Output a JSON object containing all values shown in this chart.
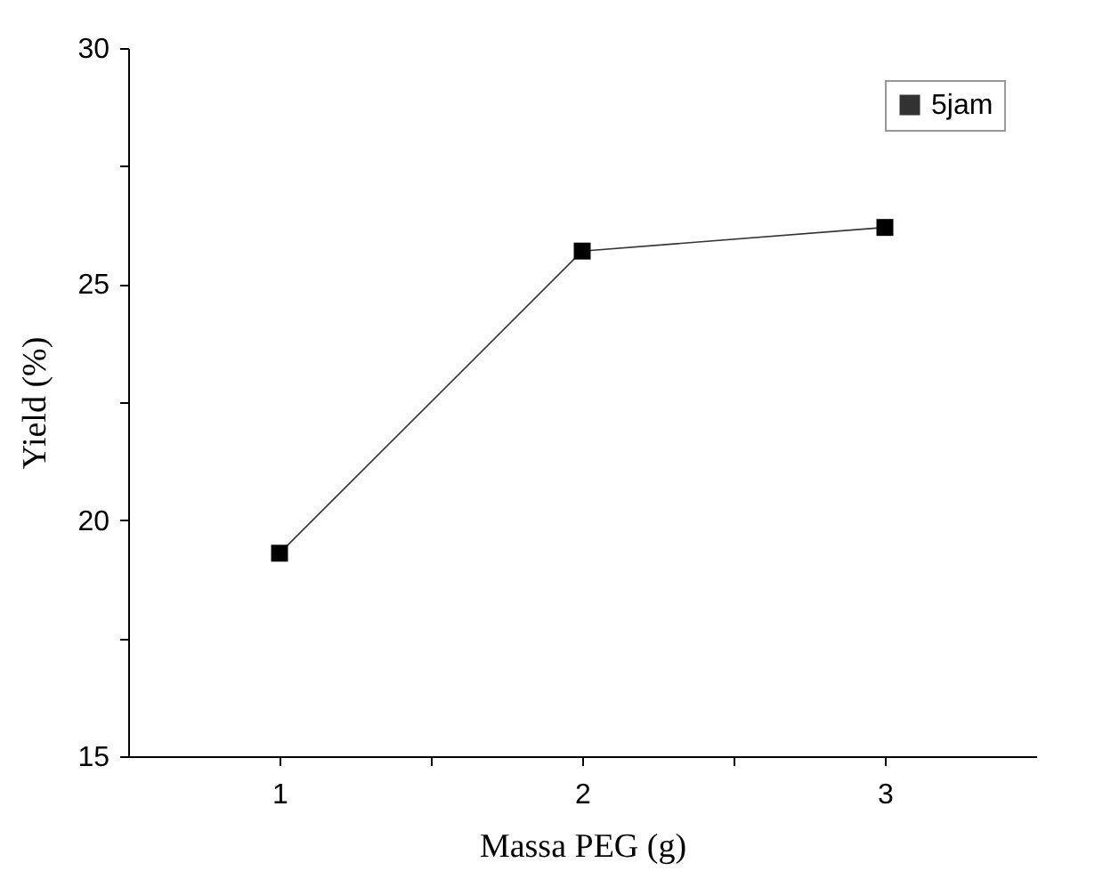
{
  "chart_data": {
    "type": "line",
    "xlabel": "Massa PEG (g)",
    "ylabel": "Yield (%)",
    "x": [
      1,
      2,
      3
    ],
    "series": [
      {
        "name": "5jam",
        "color": "#000000",
        "values": [
          19.3,
          25.7,
          26.2
        ]
      }
    ],
    "xlim": [
      0.5,
      3.5
    ],
    "xticks": [
      1,
      {
        "value": 1.5,
        "label": null
      },
      2,
      {
        "value": 2.5,
        "label": null
      },
      3
    ],
    "ylim": [
      15,
      30
    ],
    "yticks": [
      15,
      {
        "value": 17.5,
        "label": null
      },
      20,
      {
        "value": 22.5,
        "label": null
      },
      25,
      {
        "value": 27.5,
        "label": null
      },
      30
    ],
    "marker": "square",
    "line_style": "solid",
    "legend": "top right",
    "grid": false
  }
}
